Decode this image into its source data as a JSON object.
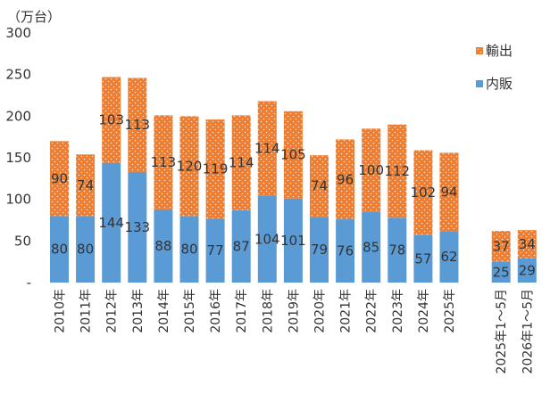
{
  "chart_data": {
    "type": "bar",
    "stacked": true,
    "unit_label": "（万台）",
    "categories": [
      "2010年",
      "2011年",
      "2012年",
      "2013年",
      "2014年",
      "2015年",
      "2016年",
      "2017年",
      "2018年",
      "2019年",
      "2020年",
      "2021年",
      "2022年",
      "2023年",
      "2024年",
      "2025年",
      "",
      "2025年1～5月",
      "2026年1～5月"
    ],
    "series": [
      {
        "name": "内販",
        "color": "#5b9bd5",
        "pattern": "none",
        "values": [
          80,
          80,
          144,
          133,
          88,
          80,
          77,
          87,
          104,
          101,
          79,
          76,
          85,
          78,
          57,
          62,
          null,
          25,
          29
        ]
      },
      {
        "name": "輸出",
        "color": "#ed7d31",
        "pattern": "dots",
        "values": [
          90,
          74,
          103,
          113,
          113,
          120,
          119,
          114,
          114,
          105,
          74,
          96,
          100,
          112,
          102,
          94,
          null,
          37,
          34
        ]
      }
    ],
    "ylim": [
      0,
      300
    ],
    "yticks": [
      0,
      50,
      100,
      150,
      200,
      250,
      300
    ],
    "ytick_labels": [
      "-",
      "50",
      "100",
      "150",
      "200",
      "250",
      "300"
    ],
    "grid": false,
    "legend": {
      "placement": "top-right",
      "order": [
        "輸出",
        "内販"
      ]
    }
  }
}
